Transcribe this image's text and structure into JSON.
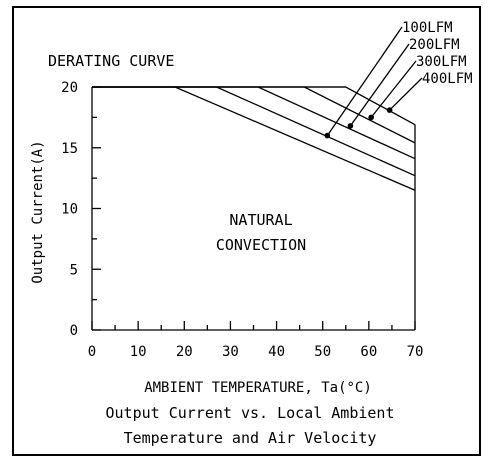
{
  "chart_data": {
    "type": "line",
    "title": "DERATING CURVE",
    "xlabel": "AMBIENT TEMPERATURE, Ta(°C)",
    "ylabel": "Output Current(A)",
    "xlim": [
      0,
      70
    ],
    "ylim": [
      0,
      20
    ],
    "x_ticks": [
      0,
      10,
      20,
      30,
      40,
      50,
      60,
      70
    ],
    "y_ticks": [
      0,
      5,
      10,
      15,
      20
    ],
    "x_tick_labels": [
      "0",
      "10",
      "20",
      "30",
      "40",
      "50",
      "60",
      "70"
    ],
    "y_tick_labels": [
      "0",
      "5",
      "10",
      "15",
      "20"
    ],
    "series": [
      {
        "name": "NATURAL CONVECTION",
        "points": [
          [
            0,
            20
          ],
          [
            18,
            20
          ],
          [
            70,
            11.5
          ]
        ]
      },
      {
        "name": "100LFM",
        "points": [
          [
            0,
            20
          ],
          [
            27,
            20
          ],
          [
            70,
            12.7
          ]
        ]
      },
      {
        "name": "200LFM",
        "points": [
          [
            0,
            20
          ],
          [
            36,
            20
          ],
          [
            70,
            14.1
          ]
        ]
      },
      {
        "name": "300LFM",
        "points": [
          [
            0,
            20
          ],
          [
            46,
            20
          ],
          [
            70,
            15.4
          ]
        ]
      },
      {
        "name": "400LFM",
        "points": [
          [
            0,
            20
          ],
          [
            55,
            20
          ],
          [
            70,
            16.9
          ]
        ]
      }
    ],
    "region_label": [
      "NATURAL",
      "CONVECTION"
    ],
    "caption_lines": [
      "Output Current vs. Local Ambient",
      "Temperature and Air Velocity"
    ],
    "callouts": [
      {
        "label": "100LFM",
        "at": [
          51,
          16.0
        ]
      },
      {
        "label": "200LFM",
        "at": [
          56,
          16.8
        ]
      },
      {
        "label": "300LFM",
        "at": [
          60.5,
          17.5
        ]
      },
      {
        "label": "400LFM",
        "at": [
          64.5,
          18.1
        ]
      }
    ],
    "grid": false
  }
}
